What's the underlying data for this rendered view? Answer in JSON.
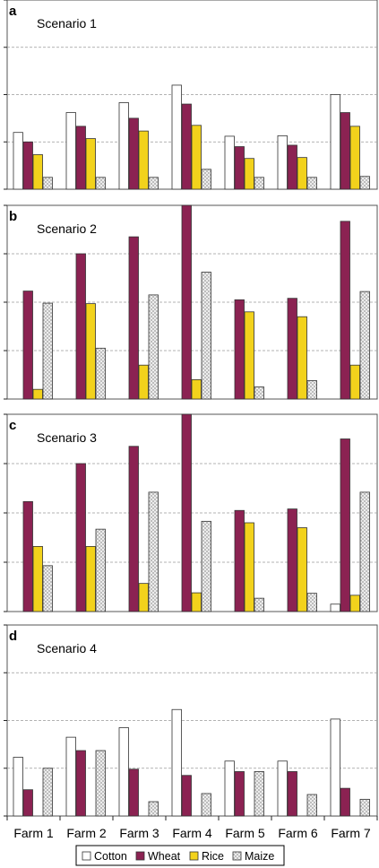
{
  "colors": {
    "cotton": "#ffffff",
    "wheat": "#8b2252",
    "rice": "#f2d21c",
    "maize": "#d8d8d8",
    "grid": "#9a9a9a",
    "axis": "#222222"
  },
  "legend": {
    "position": "bottom",
    "items": [
      {
        "key": "cotton",
        "label": "Cotton"
      },
      {
        "key": "wheat",
        "label": "Wheat"
      },
      {
        "key": "rice",
        "label": "Rice"
      },
      {
        "key": "maize",
        "label": "Maize"
      }
    ]
  },
  "chart_data": [
    {
      "type": "bar",
      "panel_letter": "a",
      "title": "Scenario 1",
      "categories": [
        "Farm 1",
        "Farm 2",
        "Farm 3",
        "Farm 4",
        "Farm 5",
        "Farm 6",
        "Farm 7"
      ],
      "ylim": [
        0,
        4
      ],
      "grid": true,
      "series": [
        {
          "name": "Cotton",
          "key": "cotton",
          "values": [
            1.2,
            1.62,
            1.83,
            2.2,
            1.12,
            1.13,
            2.0
          ]
        },
        {
          "name": "Wheat",
          "key": "wheat",
          "values": [
            1.0,
            1.33,
            1.5,
            1.8,
            0.9,
            0.93,
            1.62
          ]
        },
        {
          "name": "Rice",
          "key": "rice",
          "values": [
            0.73,
            1.07,
            1.23,
            1.35,
            0.65,
            0.67,
            1.33
          ]
        },
        {
          "name": "Maize",
          "key": "maize",
          "values": [
            0.25,
            0.25,
            0.25,
            0.42,
            0.25,
            0.25,
            0.27
          ]
        }
      ]
    },
    {
      "type": "bar",
      "panel_letter": "b",
      "title": "Scenario 2",
      "categories": [
        "Farm 1",
        "Farm 2",
        "Farm 3",
        "Farm 4",
        "Farm 5",
        "Farm 6",
        "Farm 7"
      ],
      "ylim": [
        0,
        4
      ],
      "grid": true,
      "series": [
        {
          "name": "Cotton",
          "key": "cotton",
          "values": [
            0,
            0,
            0,
            0,
            0,
            0,
            0
          ]
        },
        {
          "name": "Wheat",
          "key": "wheat",
          "values": [
            2.23,
            3.0,
            3.35,
            4.0,
            2.05,
            2.08,
            3.67
          ]
        },
        {
          "name": "Rice",
          "key": "rice",
          "values": [
            0.2,
            1.97,
            0.7,
            0.4,
            1.8,
            1.7,
            0.7
          ]
        },
        {
          "name": "Maize",
          "key": "maize",
          "values": [
            1.98,
            1.05,
            2.15,
            2.62,
            0.25,
            0.38,
            2.22
          ]
        }
      ]
    },
    {
      "type": "bar",
      "panel_letter": "c",
      "title": "Scenario 3",
      "categories": [
        "Farm 1",
        "Farm 2",
        "Farm 3",
        "Farm 4",
        "Farm 5",
        "Farm 6",
        "Farm 7"
      ],
      "ylim": [
        0,
        4
      ],
      "grid": true,
      "series": [
        {
          "name": "Cotton",
          "key": "cotton",
          "values": [
            0,
            0,
            0,
            0,
            0,
            0,
            0.15
          ]
        },
        {
          "name": "Wheat",
          "key": "wheat",
          "values": [
            2.23,
            3.0,
            3.35,
            4.0,
            2.05,
            2.08,
            3.5
          ]
        },
        {
          "name": "Rice",
          "key": "rice",
          "values": [
            1.32,
            1.32,
            0.57,
            0.38,
            1.8,
            1.7,
            0.33
          ]
        },
        {
          "name": "Maize",
          "key": "maize",
          "values": [
            0.93,
            1.67,
            2.42,
            1.83,
            0.27,
            0.37,
            2.42
          ]
        }
      ]
    },
    {
      "type": "bar",
      "panel_letter": "d",
      "title": "Scenario 4",
      "categories": [
        "Farm 1",
        "Farm 2",
        "Farm 3",
        "Farm 4",
        "Farm 5",
        "Farm 6",
        "Farm 7"
      ],
      "ylim": [
        0,
        4
      ],
      "grid": true,
      "series": [
        {
          "name": "Cotton",
          "key": "cotton",
          "values": [
            1.23,
            1.65,
            1.85,
            2.23,
            1.15,
            1.15,
            2.03
          ]
        },
        {
          "name": "Wheat",
          "key": "wheat",
          "values": [
            0.55,
            1.37,
            0.98,
            0.85,
            0.93,
            0.93,
            0.58
          ]
        },
        {
          "name": "Rice",
          "key": "rice",
          "values": [
            0,
            0,
            0,
            0,
            0,
            0,
            0
          ]
        },
        {
          "name": "Maize",
          "key": "maize",
          "values": [
            1.0,
            1.37,
            0.3,
            0.47,
            0.93,
            0.45,
            0.35
          ]
        }
      ]
    }
  ]
}
